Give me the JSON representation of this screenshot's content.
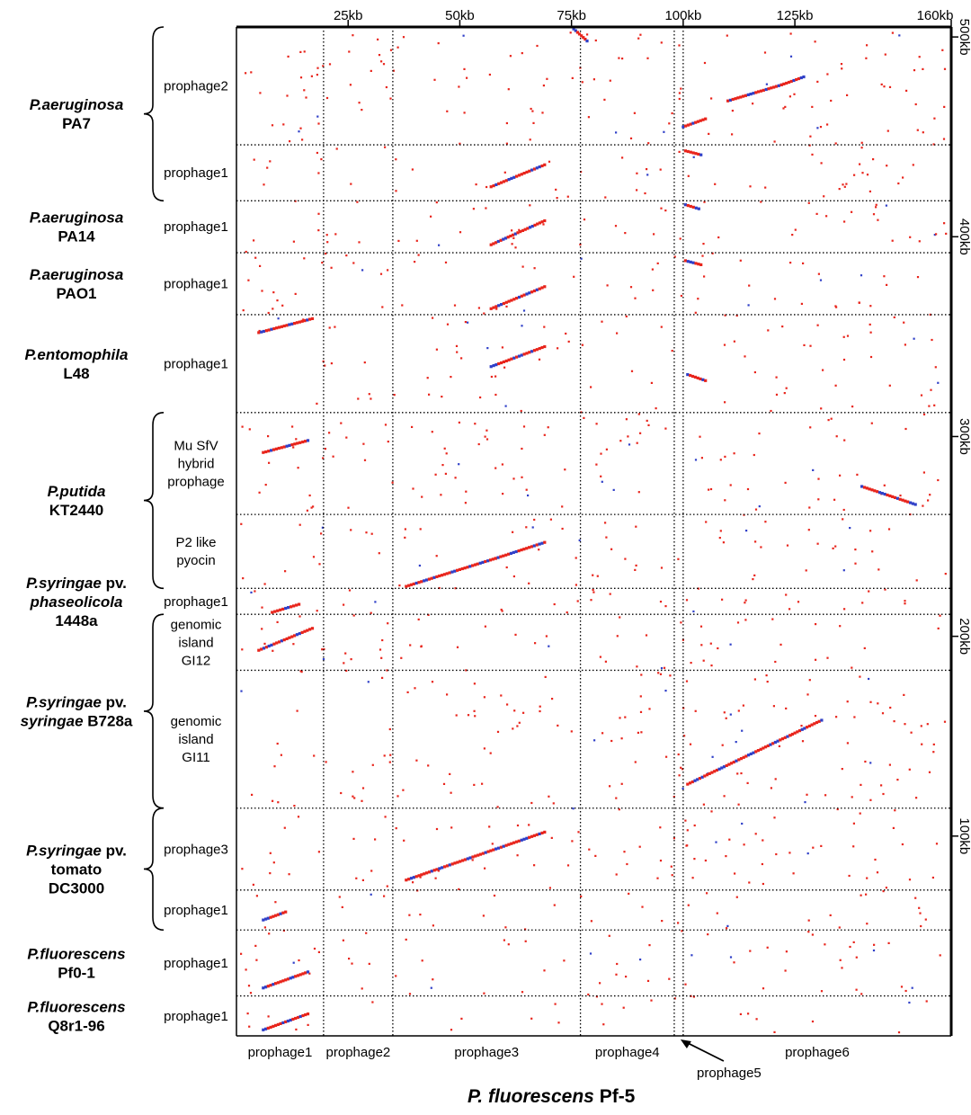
{
  "chart_data": {
    "type": "scatter",
    "title": "",
    "xlabel": {
      "italic": "P. fluorescens",
      "normal": " Pf-5"
    },
    "x_unit": "kb",
    "y_unit": "kb",
    "x_range": [
      0,
      160
    ],
    "y_range": [
      0,
      505
    ],
    "x_ticks": [
      {
        "value": 25,
        "label": "25kb"
      },
      {
        "value": 50,
        "label": "50kb"
      },
      {
        "value": 75,
        "label": "75kb"
      },
      {
        "value": 100,
        "label": "100kb"
      },
      {
        "value": 125,
        "label": "125kb"
      },
      {
        "value": 160,
        "label": "160kb"
      }
    ],
    "y_ticks": [
      {
        "value": 100,
        "label": "100kb"
      },
      {
        "value": 200,
        "label": "200kb"
      },
      {
        "value": 300,
        "label": "300kb"
      },
      {
        "value": 400,
        "label": "400kb"
      },
      {
        "value": 500,
        "label": "500kb"
      }
    ],
    "x_regions": [
      {
        "name": "prophage1",
        "start": 0,
        "end": 19.5
      },
      {
        "name": "prophage2",
        "start": 19.5,
        "end": 35
      },
      {
        "name": "prophage3",
        "start": 35,
        "end": 77
      },
      {
        "name": "prophage4",
        "start": 77,
        "end": 98
      },
      {
        "name": "prophage5",
        "start": 98,
        "end": 100
      },
      {
        "name": "prophage6",
        "start": 100,
        "end": 160
      }
    ],
    "x_region_labels": [
      "prophage1",
      "prophage2",
      "prophage3",
      "prophage4",
      "prophage5",
      "prophage6"
    ],
    "y_regions": [
      {
        "organism": "P.aeruginosa PA7",
        "region": [
          "prophage2"
        ],
        "start": 446,
        "end": 505
      },
      {
        "organism": "P.aeruginosa PA7",
        "region": [
          "prophage1"
        ],
        "start": 418,
        "end": 446
      },
      {
        "organism": "P.aeruginosa PA14",
        "region": [
          "prophage1"
        ],
        "start": 392,
        "end": 418
      },
      {
        "organism": "P.aeruginosa PAO1",
        "region": [
          "prophage1"
        ],
        "start": 361,
        "end": 392
      },
      {
        "organism": "P.entomophila L48",
        "region": [
          "prophage1"
        ],
        "start": 312,
        "end": 361
      },
      {
        "organism": "P.putida KT2440",
        "region": [
          "Mu SfV",
          "hybrid",
          "prophage"
        ],
        "start": 261,
        "end": 312
      },
      {
        "organism": "P.putida KT2440",
        "region": [
          "P2 like",
          "pyocin"
        ],
        "start": 224,
        "end": 261
      },
      {
        "organism": "P.syringae pv. phaseolicola 1448a",
        "region": [
          "prophage1"
        ],
        "start": 211,
        "end": 224
      },
      {
        "organism": "P.syringae pv. syringae B728a",
        "region": [
          "genomic",
          "island",
          "GI12"
        ],
        "start": 183,
        "end": 211
      },
      {
        "organism": "P.syringae pv. syringae B728a",
        "region": [
          "genomic",
          "island",
          "GI11"
        ],
        "start": 114,
        "end": 183
      },
      {
        "organism": "P.syringae pv. tomato DC3000",
        "region": [
          "prophage3"
        ],
        "start": 73,
        "end": 114
      },
      {
        "organism": "P.syringae pv. tomato DC3000",
        "region": [
          "prophage1"
        ],
        "start": 53,
        "end": 73
      },
      {
        "organism": "P.fluorescens Pf0-1",
        "region": [
          "prophage1"
        ],
        "start": 20,
        "end": 53
      },
      {
        "organism": "P.fluorescens Q8r1-96",
        "region": [
          "prophage1"
        ],
        "start": 0,
        "end": 20
      }
    ],
    "organisms": [
      {
        "lines": [
          {
            "parts": [
              {
                "t": "P.aeruginosa",
                "i": true
              }
            ]
          },
          {
            "parts": [
              {
                "t": "PA7",
                "i": false
              }
            ]
          }
        ]
      },
      {
        "lines": [
          {
            "parts": [
              {
                "t": "P.aeruginosa",
                "i": true
              }
            ]
          },
          {
            "parts": [
              {
                "t": "PA14",
                "i": false
              }
            ]
          }
        ]
      },
      {
        "lines": [
          {
            "parts": [
              {
                "t": "P.aeruginosa",
                "i": true
              }
            ]
          },
          {
            "parts": [
              {
                "t": "PAO1",
                "i": false
              }
            ]
          }
        ]
      },
      {
        "lines": [
          {
            "parts": [
              {
                "t": "P.entomophila",
                "i": true
              }
            ]
          },
          {
            "parts": [
              {
                "t": "L48",
                "i": false
              }
            ]
          }
        ]
      },
      {
        "lines": [
          {
            "parts": [
              {
                "t": "P.putida",
                "i": true
              }
            ]
          },
          {
            "parts": [
              {
                "t": "KT2440",
                "i": false
              }
            ]
          }
        ]
      },
      {
        "lines": [
          {
            "parts": [
              {
                "t": "P.syringae",
                "i": true
              },
              {
                "t": " pv.",
                "i": false
              }
            ]
          },
          {
            "parts": [
              {
                "t": "phaseolicola",
                "i": true
              }
            ]
          },
          {
            "parts": [
              {
                "t": "1448a",
                "i": false
              }
            ]
          }
        ]
      },
      {
        "lines": [
          {
            "parts": [
              {
                "t": "P.syringae",
                "i": true
              },
              {
                "t": " pv.",
                "i": false
              }
            ]
          },
          {
            "parts": [
              {
                "t": "syringae",
                "i": true
              },
              {
                "t": " B728a",
                "i": false
              }
            ]
          }
        ]
      },
      {
        "lines": [
          {
            "parts": [
              {
                "t": "P.syringae",
                "i": true
              },
              {
                "t": " pv.",
                "i": false
              }
            ]
          },
          {
            "parts": [
              {
                "t": "tomato",
                "i": false
              }
            ]
          },
          {
            "parts": [
              {
                "t": "DC3000",
                "i": false
              }
            ]
          }
        ]
      },
      {
        "lines": [
          {
            "parts": [
              {
                "t": "P.fluorescens",
                "i": true
              }
            ]
          },
          {
            "parts": [
              {
                "t": "Pf0-1",
                "i": false
              }
            ]
          }
        ]
      },
      {
        "lines": [
          {
            "parts": [
              {
                "t": "P.fluorescens",
                "i": true
              }
            ]
          },
          {
            "parts": [
              {
                "t": "Q8r1-96",
                "i": false
              }
            ]
          }
        ]
      }
    ],
    "series": [
      {
        "name": "forward match",
        "color": "#e8251c"
      },
      {
        "name": "reverse match",
        "color": "#3040c8"
      }
    ],
    "alignments": [
      {
        "x": [
          75.5,
          78.5
        ],
        "y": [
          504,
          498
        ]
      },
      {
        "x": [
          100,
          105
        ],
        "y": [
          455,
          459
        ]
      },
      {
        "x": [
          110,
          122
        ],
        "y": [
          468,
          476
        ]
      },
      {
        "x": [
          122,
          127
        ],
        "y": [
          476,
          480
        ]
      },
      {
        "x": [
          57,
          69
        ],
        "y": [
          425,
          436
        ]
      },
      {
        "x": [
          100.5,
          104
        ],
        "y": [
          443,
          441
        ]
      },
      {
        "x": [
          57,
          69
        ],
        "y": [
          396,
          408
        ]
      },
      {
        "x": [
          100.5,
          103.5
        ],
        "y": [
          416,
          414
        ]
      },
      {
        "x": [
          57,
          69
        ],
        "y": [
          364,
          375
        ]
      },
      {
        "x": [
          100.5,
          104
        ],
        "y": [
          388,
          386
        ]
      },
      {
        "x": [
          5,
          17
        ],
        "y": [
          352,
          359
        ]
      },
      {
        "x": [
          57,
          69
        ],
        "y": [
          335,
          345
        ]
      },
      {
        "x": [
          101,
          105
        ],
        "y": [
          331,
          328
        ]
      },
      {
        "x": [
          6,
          16
        ],
        "y": [
          292,
          298
        ]
      },
      {
        "x": [
          140,
          152
        ],
        "y": [
          275,
          266
        ]
      },
      {
        "x": [
          38,
          58
        ],
        "y": [
          225,
          239
        ]
      },
      {
        "x": [
          58,
          69
        ],
        "y": [
          239,
          247
        ]
      },
      {
        "x": [
          8,
          14
        ],
        "y": [
          212,
          216
        ]
      },
      {
        "x": [
          5,
          17
        ],
        "y": [
          193,
          204
        ]
      },
      {
        "x": [
          101,
          131
        ],
        "y": [
          126,
          158
        ]
      },
      {
        "x": [
          38,
          69
        ],
        "y": [
          78,
          102
        ]
      },
      {
        "x": [
          6,
          11
        ],
        "y": [
          58,
          62
        ]
      },
      {
        "x": [
          6,
          16
        ],
        "y": [
          24,
          32
        ]
      },
      {
        "x": [
          6,
          16
        ],
        "y": [
          3,
          11
        ]
      }
    ]
  },
  "x_marker_label": "prophage5"
}
